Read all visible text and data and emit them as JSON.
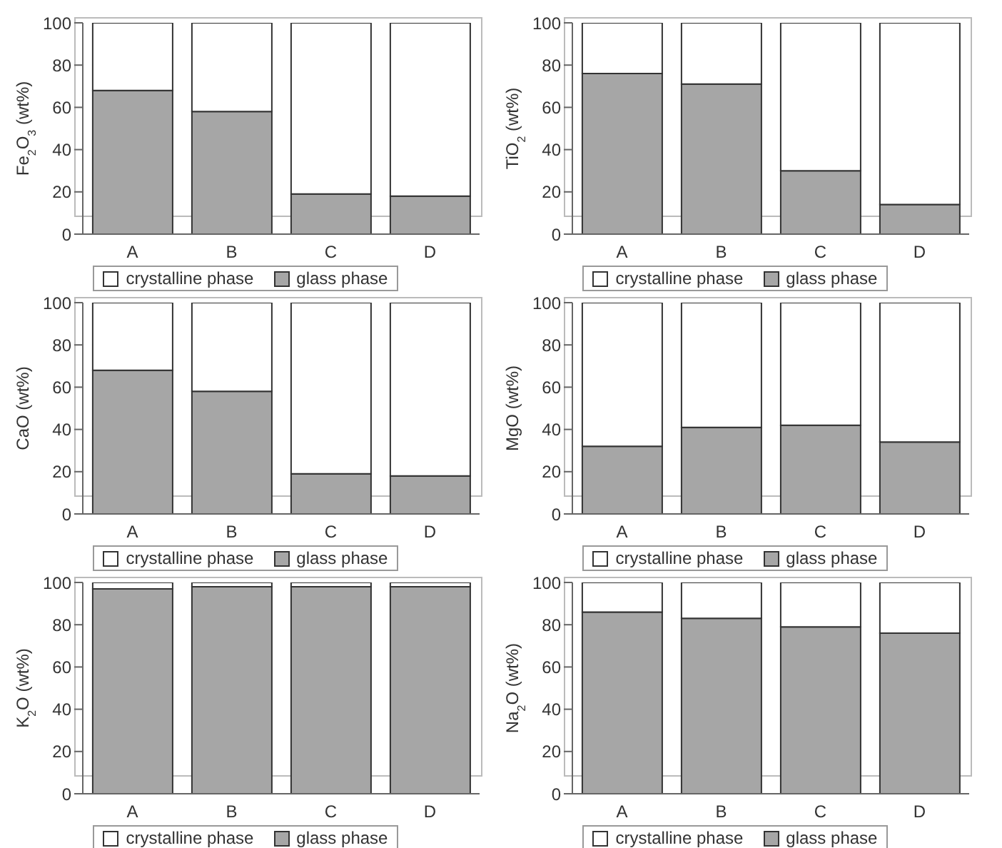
{
  "chart_data": [
    {
      "type": "bar",
      "stacked": true,
      "categories": [
        "A",
        "B",
        "C",
        "D"
      ],
      "ylabel": "Fe$_{2}$O$_{3}$ (wt%)",
      "ylim": [
        0,
        100
      ],
      "yticks": [
        0,
        20,
        40,
        60,
        80,
        100
      ],
      "legend": "bottom",
      "series": [
        {
          "name": "glass phase",
          "color": "#a6a6a6",
          "values": [
            68,
            58,
            19,
            18
          ]
        },
        {
          "name": "crystalline phase",
          "color": "#ffffff",
          "values": [
            32,
            42,
            81,
            82
          ]
        }
      ]
    },
    {
      "type": "bar",
      "stacked": true,
      "categories": [
        "A",
        "B",
        "C",
        "D"
      ],
      "ylabel": "TiO$_{2}$ (wt%)",
      "ylim": [
        0,
        100
      ],
      "yticks": [
        0,
        20,
        40,
        60,
        80,
        100
      ],
      "legend": "bottom",
      "series": [
        {
          "name": "glass phase",
          "color": "#a6a6a6",
          "values": [
            76,
            71,
            30,
            14
          ]
        },
        {
          "name": "crystalline phase",
          "color": "#ffffff",
          "values": [
            24,
            29,
            70,
            86
          ]
        }
      ]
    },
    {
      "type": "bar",
      "stacked": true,
      "categories": [
        "A",
        "B",
        "C",
        "D"
      ],
      "ylabel": "CaO (wt%)",
      "ylim": [
        0,
        100
      ],
      "yticks": [
        0,
        20,
        40,
        60,
        80,
        100
      ],
      "legend": "bottom",
      "series": [
        {
          "name": "glass phase",
          "color": "#a6a6a6",
          "values": [
            68,
            58,
            19,
            18
          ]
        },
        {
          "name": "crystalline phase",
          "color": "#ffffff",
          "values": [
            32,
            42,
            81,
            82
          ]
        }
      ]
    },
    {
      "type": "bar",
      "stacked": true,
      "categories": [
        "A",
        "B",
        "C",
        "D"
      ],
      "ylabel": "MgO (wt%)",
      "ylim": [
        0,
        100
      ],
      "yticks": [
        0,
        20,
        40,
        60,
        80,
        100
      ],
      "legend": "bottom",
      "series": [
        {
          "name": "glass phase",
          "color": "#a6a6a6",
          "values": [
            32,
            41,
            42,
            34
          ]
        },
        {
          "name": "crystalline phase",
          "color": "#ffffff",
          "values": [
            68,
            59,
            58,
            66
          ]
        }
      ]
    },
    {
      "type": "bar",
      "stacked": true,
      "categories": [
        "A",
        "B",
        "C",
        "D"
      ],
      "ylabel": "K$_{2}$O (wt%)",
      "ylim": [
        0,
        100
      ],
      "yticks": [
        0,
        20,
        40,
        60,
        80,
        100
      ],
      "legend": "bottom",
      "series": [
        {
          "name": "glass phase",
          "color": "#a6a6a6",
          "values": [
            97,
            98,
            98,
            98
          ]
        },
        {
          "name": "crystalline phase",
          "color": "#ffffff",
          "values": [
            3,
            2,
            2,
            2
          ]
        }
      ]
    },
    {
      "type": "bar",
      "stacked": true,
      "categories": [
        "A",
        "B",
        "C",
        "D"
      ],
      "ylabel": "Na$_{2}$O (wt%)",
      "ylim": [
        0,
        100
      ],
      "yticks": [
        0,
        20,
        40,
        60,
        80,
        100
      ],
      "legend": "bottom",
      "series": [
        {
          "name": "glass phase",
          "color": "#a6a6a6",
          "values": [
            86,
            83,
            79,
            76
          ]
        },
        {
          "name": "crystalline phase",
          "color": "#ffffff",
          "values": [
            14,
            17,
            21,
            24
          ]
        }
      ]
    }
  ]
}
